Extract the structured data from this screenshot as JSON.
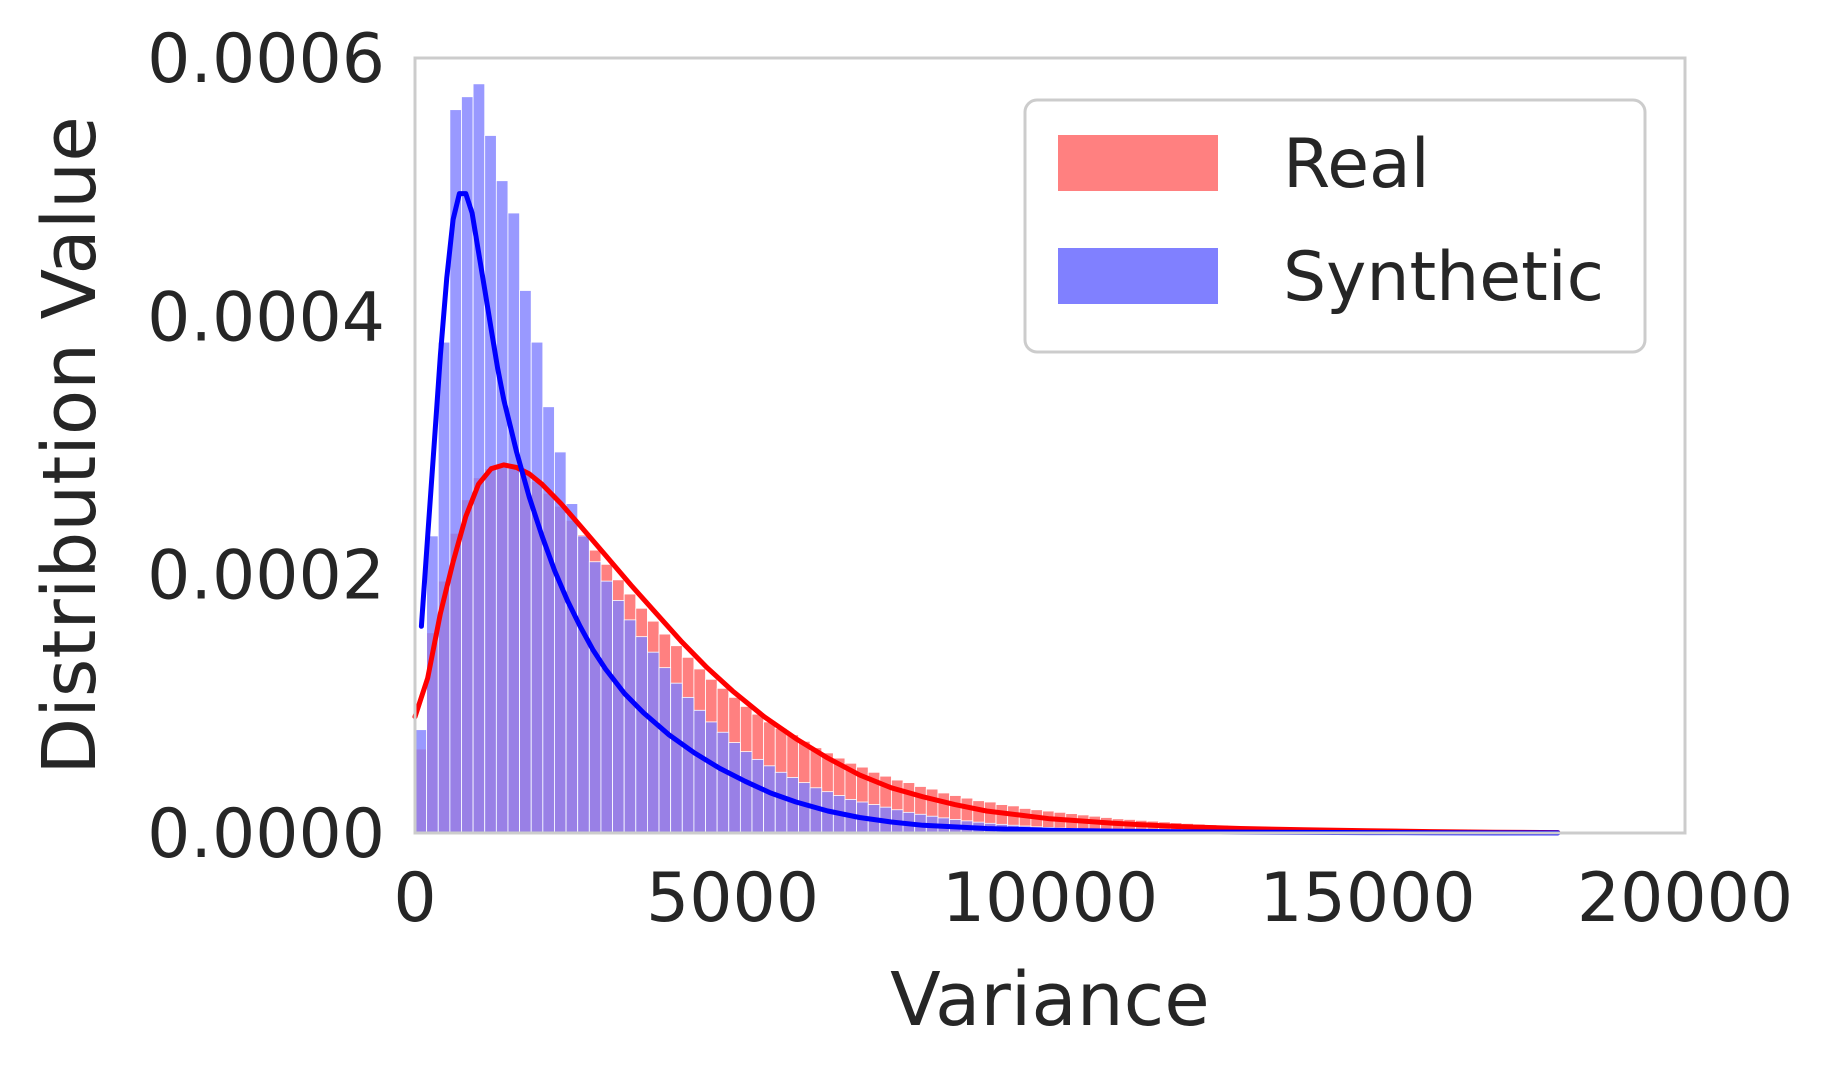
{
  "chart_data": {
    "type": "bar",
    "title": "",
    "xlabel": "Variance",
    "ylabel": "Distribution Value",
    "xlim": [
      0,
      20000
    ],
    "ylim": [
      0,
      0.0006
    ],
    "xticks": [
      "0",
      "5000",
      "10000",
      "15000",
      "20000"
    ],
    "yticks": [
      "0.0000",
      "0.0002",
      "0.0004",
      "0.0006"
    ],
    "grid": false,
    "legend_position": "top-right",
    "bin_width": 183,
    "series": [
      {
        "name": "Real",
        "color": "#ff0000",
        "bar_color": "#ff8080",
        "bins_start": 0,
        "density": [
          6.5e-05,
          0.000155,
          0.000195,
          0.000232,
          0.000258,
          0.000275,
          0.000282,
          0.000285,
          0.000284,
          0.000279,
          0.000272,
          0.000263,
          0.000253,
          0.000242,
          0.000231,
          0.000219,
          0.000208,
          0.000196,
          0.000185,
          0.000174,
          0.000164,
          0.000154,
          0.000145,
          0.000136,
          0.000127,
          0.000119,
          0.000112,
          0.000105,
          9.8e-05,
          9.2e-05,
          8.6e-05,
          8.1e-05,
          7.6e-05,
          7.1e-05,
          6.6e-05,
          6.2e-05,
          5.8e-05,
          5.4e-05,
          5.1e-05,
          4.7e-05,
          4.4e-05,
          4.1e-05,
          3.9e-05,
          3.6e-05,
          3.4e-05,
          3.1e-05,
          2.9e-05,
          2.7e-05,
          2.5e-05,
          2.4e-05,
          2.2e-05,
          2.1e-05,
          1.9e-05,
          1.8e-05,
          1.7e-05,
          1.6e-05,
          1.5e-05,
          1.4e-05,
          1.3e-05,
          1.2e-05,
          1.1e-05,
          1.05e-05,
          9.8e-06,
          9.2e-06,
          8.6e-06,
          8e-06,
          7.4e-06,
          6.9e-06,
          6.4e-06,
          6e-06,
          5.5e-06,
          5.1e-06,
          4.7e-06,
          4.3e-06,
          4e-06,
          3.7e-06,
          3.4e-06,
          3.1e-06,
          2.8e-06,
          2.6e-06,
          2.4e-06,
          2.2e-06,
          2e-06,
          1.8e-06,
          1.6e-06,
          1.4e-06,
          1.2e-06,
          1e-06,
          9e-07,
          8e-07,
          7e-07,
          6e-07,
          5e-07,
          4e-07,
          3e-07,
          2e-07
        ],
        "kde_x": [
          0,
          200,
          400,
          600,
          800,
          1000,
          1200,
          1400,
          1600,
          1800,
          2000,
          2300,
          2600,
          3000,
          3400,
          3800,
          4200,
          4600,
          5000,
          5500,
          6000,
          6500,
          7000,
          7500,
          8000,
          8500,
          9000,
          9500,
          10000,
          11000,
          12000,
          13000,
          14000,
          15000,
          16000,
          17000,
          18000
        ],
        "kde_y": [
          9e-05,
          0.00012,
          0.00017,
          0.00021,
          0.000245,
          0.00027,
          0.000282,
          0.000285,
          0.000283,
          0.000278,
          0.00027,
          0.000255,
          0.000238,
          0.000215,
          0.000192,
          0.00017,
          0.000148,
          0.000128,
          0.00011,
          9e-05,
          7.3e-05,
          5.8e-05,
          4.5e-05,
          3.5e-05,
          2.8e-05,
          2.2e-05,
          1.7e-05,
          1.4e-05,
          1.1e-05,
          7.5e-06,
          5e-06,
          3.5e-06,
          2.5e-06,
          1.7e-06,
          1.1e-06,
          6e-07,
          3e-07
        ]
      },
      {
        "name": "Synthetic",
        "color": "#0000ff",
        "bar_color": "#8080ff",
        "bins_start": 0,
        "density": [
          8e-05,
          0.00023,
          0.00038,
          0.00056,
          0.00057,
          0.00058,
          0.00054,
          0.000505,
          0.00048,
          0.00042,
          0.00038,
          0.00033,
          0.000295,
          0.000255,
          0.00023,
          0.00021,
          0.000195,
          0.00018,
          0.000165,
          0.000152,
          0.00014,
          0.000128,
          0.000116,
          0.000105,
          9.5e-05,
          8.6e-05,
          7.8e-05,
          7e-05,
          6.3e-05,
          5.7e-05,
          5.2e-05,
          4.7e-05,
          4.3e-05,
          3.9e-05,
          3.5e-05,
          3.2e-05,
          2.9e-05,
          2.6e-05,
          2.4e-05,
          2.2e-05,
          2e-05,
          1.8e-05,
          1.6e-05,
          1.45e-05,
          1.3e-05,
          1.17e-05,
          1.05e-05,
          9.4e-06,
          8.4e-06,
          7.5e-06,
          6.7e-06,
          6e-06,
          5.4e-06,
          4.8e-06,
          4.3e-06,
          3.9e-06,
          3.5e-06,
          3.1e-06,
          2.8e-06,
          2.5e-06,
          2.2e-06,
          2e-06,
          1.8e-06,
          1.6e-06,
          1.4e-06,
          1.2e-06,
          1e-06,
          9e-07,
          8e-07,
          7e-07,
          6e-07,
          5e-07,
          4e-07,
          3.5e-07,
          3e-07,
          2.5e-07,
          2e-07,
          1.5e-07,
          1e-07,
          8e-08,
          6e-08,
          5e-08,
          4e-08,
          3e-08,
          2e-08,
          1e-08,
          1e-08,
          1e-08,
          1e-08,
          1e-08,
          1e-08,
          1e-08,
          1e-08,
          1e-08
        ],
        "kde_x": [
          100,
          200,
          300,
          400,
          500,
          600,
          700,
          800,
          900,
          1000,
          1100,
          1200,
          1300,
          1400,
          1500,
          1600,
          1800,
          2000,
          2200,
          2400,
          2600,
          2800,
          3000,
          3300,
          3600,
          4000,
          4400,
          4800,
          5200,
          5600,
          6000,
          6500,
          7000,
          7500,
          8000,
          9000,
          10000,
          11000,
          12000,
          13000,
          14000,
          15000,
          16000,
          17000,
          18000
        ],
        "kde_y": [
          0.00016,
          0.00023,
          0.0003,
          0.00037,
          0.00043,
          0.000475,
          0.000495,
          0.000495,
          0.00048,
          0.00045,
          0.00042,
          0.00039,
          0.00036,
          0.000335,
          0.000315,
          0.000295,
          0.00026,
          0.00023,
          0.000203,
          0.00018,
          0.00016,
          0.000142,
          0.000127,
          0.000108,
          9.3e-05,
          7.6e-05,
          6.2e-05,
          5e-05,
          4e-05,
          3.1e-05,
          2.4e-05,
          1.7e-05,
          1.2e-05,
          8.5e-06,
          6e-06,
          3.5e-06,
          2.2e-06,
          1.5e-06,
          1e-06,
          7e-07,
          5e-07,
          3e-07,
          2e-07,
          1e-07,
          1e-07
        ]
      }
    ]
  }
}
